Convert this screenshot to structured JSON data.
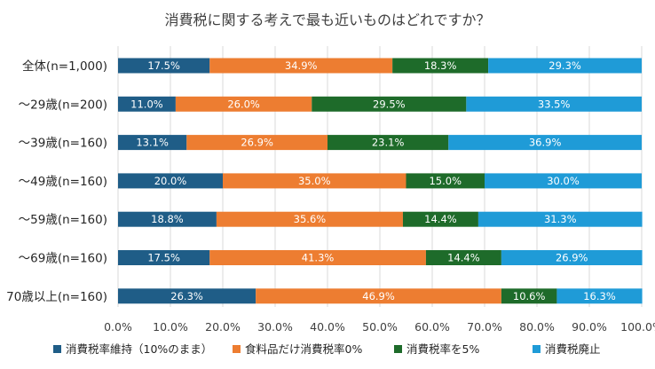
{
  "chart_data": {
    "type": "bar",
    "orientation": "horizontal",
    "stacked": true,
    "title": "消費税に関する考えで最も近いものはどれですか？",
    "categories": [
      "全体(n=1,000)",
      "～29歳(n=200)",
      "～39歳(n=160)",
      "～49歳(n=160)",
      "～59歳(n=160)",
      "～69歳(n=160)",
      "70歳以上(n=160)"
    ],
    "series": [
      {
        "name": "消費税率維持（10%のまま）",
        "color": "#1f5d87",
        "values": [
          17.5,
          11.0,
          13.1,
          20.0,
          18.8,
          17.5,
          26.3
        ]
      },
      {
        "name": "食料品だけ消費税率0%",
        "color": "#ed7d31",
        "values": [
          34.9,
          26.0,
          26.9,
          35.0,
          35.6,
          41.3,
          46.9
        ]
      },
      {
        "name": "消費税率を5%",
        "color": "#1e6b2a",
        "values": [
          18.3,
          29.5,
          23.1,
          15.0,
          14.4,
          14.4,
          10.6
        ]
      },
      {
        "name": "消費税廃止",
        "color": "#1f9bd7",
        "values": [
          29.3,
          33.5,
          36.9,
          30.0,
          31.3,
          26.9,
          16.3
        ]
      }
    ],
    "value_labels": [
      [
        "17.5%",
        "34.9%",
        "18.3%",
        "29.3%"
      ],
      [
        "11.0%",
        "26.0%",
        "29.5%",
        "33.5%"
      ],
      [
        "13.1%",
        "26.9%",
        "23.1%",
        "36.9%"
      ],
      [
        "20.0%",
        "35.0%",
        "15.0%",
        "30.0%"
      ],
      [
        "18.8%",
        "35.6%",
        "14.4%",
        "31.3%"
      ],
      [
        "17.5%",
        "41.3%",
        "14.4%",
        "26.9%"
      ],
      [
        "26.3%",
        "46.9%",
        "10.6%",
        "16.3%"
      ]
    ],
    "xlim": [
      0,
      100
    ],
    "xticks": [
      0,
      10,
      20,
      30,
      40,
      50,
      60,
      70,
      80,
      90,
      100
    ],
    "xtick_labels": [
      "0.0%",
      "10.0%",
      "20.0%",
      "30.0%",
      "40.0%",
      "50.0%",
      "60.0%",
      "70.0%",
      "80.0%",
      "90.0%",
      "100.0%"
    ],
    "xlabel": "",
    "ylabel": "",
    "grid": true,
    "legend_position": "bottom"
  }
}
